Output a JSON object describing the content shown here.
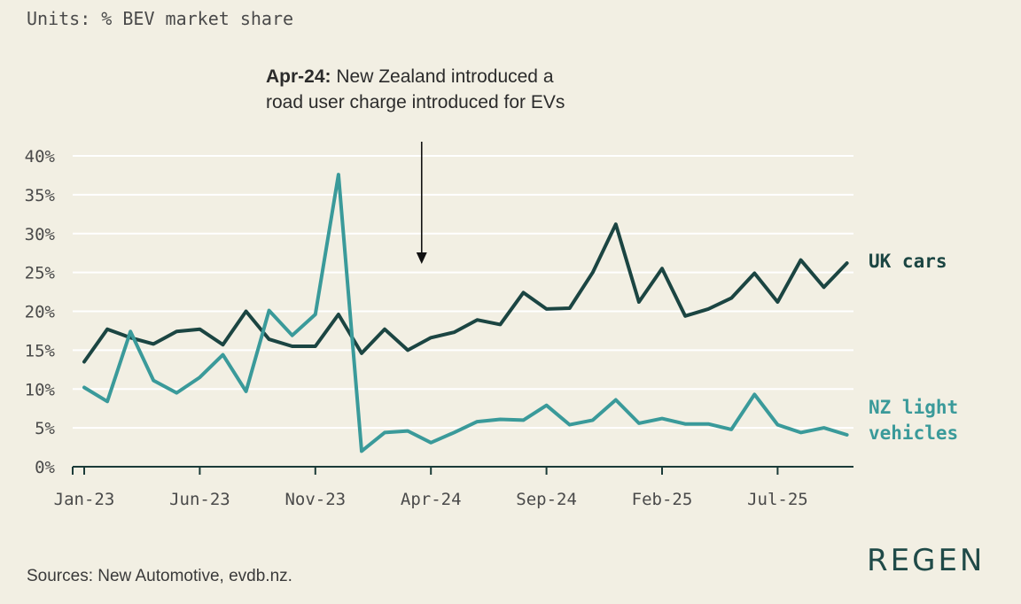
{
  "units": "Units: % BEV market share",
  "annotation": {
    "bold": "Apr-24:",
    "line1": " New Zealand introduced a",
    "line2": "road user charge introduced for EVs"
  },
  "sources": "Sources: New Automotive, evdb.nz.",
  "logo": "REGEN",
  "colors": {
    "uk": "#1b4542",
    "nz": "#3a9a9a",
    "grid": "#ffffff",
    "axis": "#1b3b38"
  },
  "chart_data": {
    "type": "line",
    "title": "",
    "xlabel": "",
    "ylabel": "% BEV market share",
    "ylim": [
      0,
      40
    ],
    "y_ticks": [
      "0%",
      "5%",
      "10%",
      "15%",
      "20%",
      "25%",
      "30%",
      "35%",
      "40%"
    ],
    "x_tick_labels": [
      "Jan-23",
      "Jun-23",
      "Nov-23",
      "Apr-24",
      "Sep-24",
      "Feb-25",
      "Jul-25"
    ],
    "x_tick_indices": [
      0,
      5,
      10,
      15,
      20,
      25,
      30
    ],
    "annotation_index": 14.6,
    "categories": [
      "Jan-23",
      "Feb-23",
      "Mar-23",
      "Apr-23",
      "May-23",
      "Jun-23",
      "Jul-23",
      "Aug-23",
      "Sep-23",
      "Oct-23",
      "Nov-23",
      "Dec-23",
      "Jan-24",
      "Feb-24",
      "Mar-24",
      "Apr-24",
      "May-24",
      "Jun-24",
      "Jul-24",
      "Aug-24",
      "Sep-24",
      "Oct-24",
      "Nov-24",
      "Dec-24",
      "Jan-25",
      "Feb-25",
      "Mar-25",
      "Apr-25",
      "May-25",
      "Jun-25",
      "Jul-25",
      "Aug-25",
      "Sep-25",
      "Oct-25"
    ],
    "series": [
      {
        "name": "UK cars",
        "label_lines": [
          "UK cars"
        ],
        "color_key": "uk",
        "values": [
          13.5,
          17.7,
          16.6,
          15.8,
          17.4,
          17.7,
          15.7,
          20.0,
          16.4,
          15.5,
          15.5,
          19.6,
          14.6,
          17.7,
          15.0,
          16.6,
          17.3,
          18.9,
          18.3,
          22.4,
          20.3,
          20.4,
          25.0,
          31.2,
          21.2,
          25.5,
          19.4,
          20.3,
          21.7,
          24.9,
          21.2,
          26.6,
          23.1,
          26.2
        ]
      },
      {
        "name": "NZ light vehicles",
        "label_lines": [
          "NZ light",
          "vehicles"
        ],
        "color_key": "nz",
        "values": [
          10.2,
          8.4,
          17.4,
          11.1,
          9.5,
          11.5,
          14.4,
          9.7,
          20.1,
          16.9,
          19.6,
          37.6,
          2.0,
          4.4,
          4.6,
          3.1,
          4.4,
          5.8,
          6.1,
          6.0,
          7.9,
          5.4,
          6.0,
          8.6,
          5.6,
          6.2,
          5.5,
          5.5,
          4.8,
          9.3,
          5.4,
          4.4,
          5.0,
          4.1
        ]
      }
    ]
  }
}
